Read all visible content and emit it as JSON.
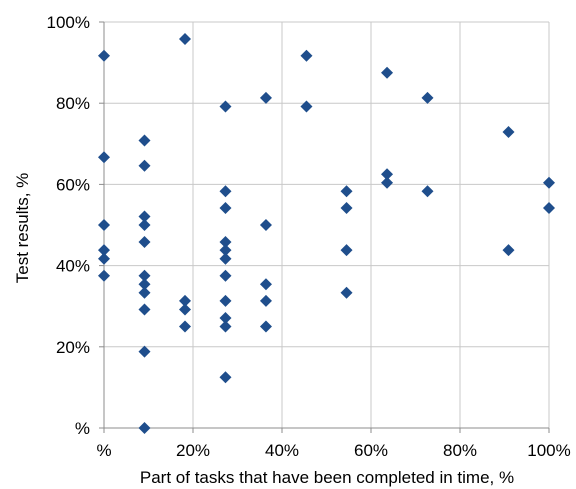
{
  "chart_data": {
    "type": "scatter",
    "title": "",
    "xlabel": "Part of tasks that have been completed in time, %",
    "ylabel": "Test results, %",
    "xlim": [
      0,
      100
    ],
    "ylim": [
      0,
      100
    ],
    "x_ticks": [
      0,
      20,
      40,
      60,
      80,
      100
    ],
    "y_ticks": [
      0,
      20,
      40,
      60,
      80,
      100
    ],
    "x_tick_labels": [
      "%",
      "20%",
      "40%",
      "60%",
      "80%",
      "100%"
    ],
    "y_tick_labels": [
      "%",
      "20%",
      "40%",
      "60%",
      "80%",
      "100%"
    ],
    "grid": true,
    "legend": "none",
    "marker_color": "#1f4e8c",
    "marker_shape": "diamond",
    "points": [
      {
        "x": 0,
        "y": 91.7
      },
      {
        "x": 0,
        "y": 66.7
      },
      {
        "x": 0,
        "y": 50.0
      },
      {
        "x": 0,
        "y": 43.8
      },
      {
        "x": 0,
        "y": 41.7
      },
      {
        "x": 0,
        "y": 37.5
      },
      {
        "x": 9.1,
        "y": 70.8
      },
      {
        "x": 9.1,
        "y": 64.6
      },
      {
        "x": 9.1,
        "y": 52.1
      },
      {
        "x": 9.1,
        "y": 50.0
      },
      {
        "x": 9.1,
        "y": 45.8
      },
      {
        "x": 9.1,
        "y": 37.5
      },
      {
        "x": 9.1,
        "y": 35.4
      },
      {
        "x": 9.1,
        "y": 33.3
      },
      {
        "x": 9.1,
        "y": 29.2
      },
      {
        "x": 9.1,
        "y": 18.8
      },
      {
        "x": 9.1,
        "y": 0
      },
      {
        "x": 18.2,
        "y": 95.8
      },
      {
        "x": 18.2,
        "y": 31.3
      },
      {
        "x": 18.2,
        "y": 29.2
      },
      {
        "x": 18.2,
        "y": 25.0
      },
      {
        "x": 27.3,
        "y": 79.2
      },
      {
        "x": 27.3,
        "y": 58.3
      },
      {
        "x": 27.3,
        "y": 54.2
      },
      {
        "x": 27.3,
        "y": 45.8
      },
      {
        "x": 27.3,
        "y": 43.8
      },
      {
        "x": 27.3,
        "y": 41.7
      },
      {
        "x": 27.3,
        "y": 37.5
      },
      {
        "x": 27.3,
        "y": 31.3
      },
      {
        "x": 27.3,
        "y": 27.1
      },
      {
        "x": 27.3,
        "y": 25.0
      },
      {
        "x": 27.3,
        "y": 12.5
      },
      {
        "x": 36.4,
        "y": 81.3
      },
      {
        "x": 36.4,
        "y": 50.0
      },
      {
        "x": 36.4,
        "y": 35.4
      },
      {
        "x": 36.4,
        "y": 31.3
      },
      {
        "x": 36.4,
        "y": 25.0
      },
      {
        "x": 45.5,
        "y": 91.7
      },
      {
        "x": 45.5,
        "y": 79.2
      },
      {
        "x": 54.5,
        "y": 58.3
      },
      {
        "x": 54.5,
        "y": 54.2
      },
      {
        "x": 54.5,
        "y": 43.8
      },
      {
        "x": 54.5,
        "y": 33.3
      },
      {
        "x": 63.6,
        "y": 87.5
      },
      {
        "x": 63.6,
        "y": 62.5
      },
      {
        "x": 63.6,
        "y": 60.4
      },
      {
        "x": 72.7,
        "y": 81.3
      },
      {
        "x": 72.7,
        "y": 58.3
      },
      {
        "x": 90.9,
        "y": 72.9
      },
      {
        "x": 90.9,
        "y": 43.8
      },
      {
        "x": 100,
        "y": 60.4
      },
      {
        "x": 100,
        "y": 54.2
      }
    ]
  }
}
